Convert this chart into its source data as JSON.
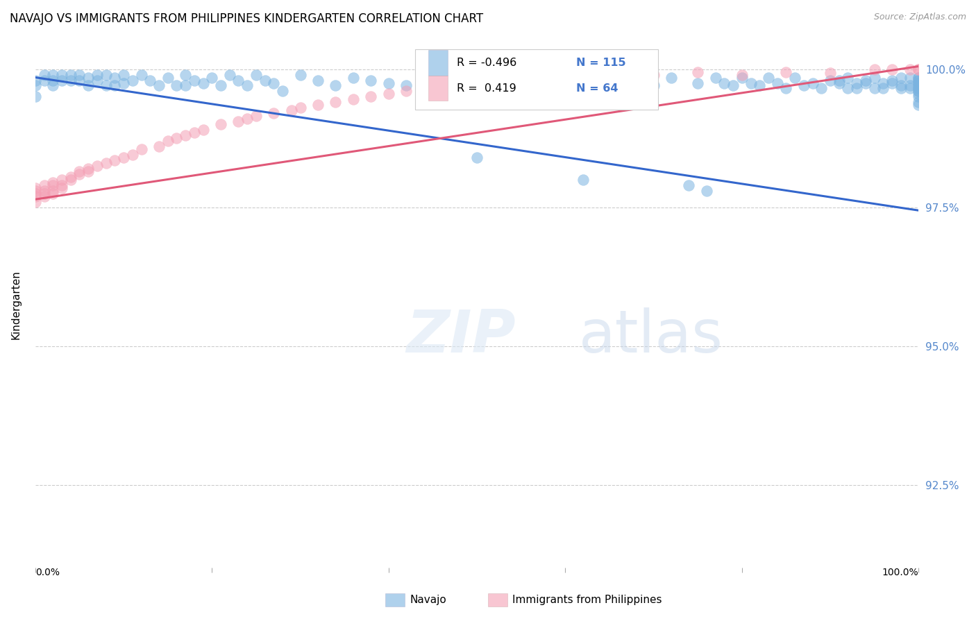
{
  "title": "NAVAJO VS IMMIGRANTS FROM PHILIPPINES KINDERGARTEN CORRELATION CHART",
  "source": "Source: ZipAtlas.com",
  "ylabel": "Kindergarten",
  "ytick_labels": [
    "92.5%",
    "95.0%",
    "97.5%",
    "100.0%"
  ],
  "ytick_values": [
    0.925,
    0.95,
    0.975,
    1.0
  ],
  "xlim": [
    0.0,
    1.0
  ],
  "ylim": [
    0.91,
    1.005
  ],
  "legend_navajo": "Navajo",
  "legend_philippines": "Immigrants from Philippines",
  "navajo_color": "#7ab3e0",
  "philippines_color": "#f4a0b5",
  "navajo_line_color": "#3366cc",
  "philippines_line_color": "#e05878",
  "watermark_zip": "ZIP",
  "watermark_atlas": "atlas",
  "navajo_x": [
    0.0,
    0.0,
    0.0,
    0.01,
    0.01,
    0.02,
    0.02,
    0.02,
    0.03,
    0.03,
    0.04,
    0.04,
    0.05,
    0.05,
    0.06,
    0.06,
    0.07,
    0.07,
    0.08,
    0.08,
    0.09,
    0.09,
    0.1,
    0.1,
    0.11,
    0.12,
    0.13,
    0.14,
    0.15,
    0.16,
    0.17,
    0.17,
    0.18,
    0.19,
    0.2,
    0.21,
    0.22,
    0.23,
    0.24,
    0.25,
    0.26,
    0.27,
    0.28,
    0.3,
    0.32,
    0.34,
    0.36,
    0.38,
    0.4,
    0.42,
    0.44,
    0.46,
    0.48,
    0.5,
    0.52,
    0.55,
    0.58,
    0.6,
    0.62,
    0.65,
    0.68,
    0.7,
    0.72,
    0.74,
    0.75,
    0.76,
    0.77,
    0.78,
    0.79,
    0.8,
    0.81,
    0.82,
    0.83,
    0.84,
    0.85,
    0.86,
    0.87,
    0.88,
    0.89,
    0.9,
    0.91,
    0.91,
    0.92,
    0.92,
    0.93,
    0.93,
    0.94,
    0.94,
    0.95,
    0.95,
    0.96,
    0.96,
    0.97,
    0.97,
    0.98,
    0.98,
    0.98,
    0.99,
    0.99,
    0.99,
    1.0,
    1.0,
    1.0,
    1.0,
    1.0,
    1.0,
    1.0,
    1.0,
    1.0,
    1.0,
    1.0,
    1.0,
    1.0,
    1.0,
    1.0
  ],
  "navajo_y": [
    0.998,
    0.997,
    0.995,
    0.999,
    0.998,
    0.999,
    0.998,
    0.997,
    0.999,
    0.998,
    0.999,
    0.998,
    0.999,
    0.998,
    0.9985,
    0.997,
    0.999,
    0.998,
    0.999,
    0.997,
    0.9985,
    0.997,
    0.999,
    0.9975,
    0.998,
    0.999,
    0.998,
    0.997,
    0.9985,
    0.997,
    0.999,
    0.997,
    0.998,
    0.9975,
    0.9985,
    0.997,
    0.999,
    0.998,
    0.997,
    0.999,
    0.998,
    0.9975,
    0.996,
    0.999,
    0.998,
    0.997,
    0.9985,
    0.998,
    0.9975,
    0.997,
    0.999,
    0.998,
    0.9975,
    0.984,
    0.998,
    0.997,
    0.999,
    0.9975,
    0.98,
    0.9985,
    0.998,
    0.997,
    0.9985,
    0.979,
    0.9975,
    0.978,
    0.9985,
    0.9975,
    0.997,
    0.9985,
    0.9975,
    0.997,
    0.9985,
    0.9975,
    0.9965,
    0.9985,
    0.997,
    0.9975,
    0.9965,
    0.998,
    0.998,
    0.9975,
    0.9965,
    0.9985,
    0.9975,
    0.9965,
    0.998,
    0.9975,
    0.9965,
    0.9985,
    0.9975,
    0.9965,
    0.998,
    0.9975,
    0.9985,
    0.997,
    0.9965,
    0.9985,
    0.997,
    0.9965,
    0.9985,
    0.998,
    0.9975,
    0.997,
    0.9965,
    0.996,
    0.9955,
    0.995,
    0.994,
    0.9935,
    0.9985,
    0.998,
    0.9975,
    0.9965,
    0.996
  ],
  "philippines_x": [
    0.0,
    0.0,
    0.0,
    0.0,
    0.0,
    0.01,
    0.01,
    0.01,
    0.01,
    0.02,
    0.02,
    0.02,
    0.02,
    0.03,
    0.03,
    0.03,
    0.04,
    0.04,
    0.05,
    0.05,
    0.06,
    0.06,
    0.07,
    0.08,
    0.09,
    0.1,
    0.11,
    0.12,
    0.14,
    0.15,
    0.16,
    0.17,
    0.18,
    0.19,
    0.21,
    0.23,
    0.24,
    0.25,
    0.27,
    0.29,
    0.3,
    0.32,
    0.34,
    0.36,
    0.38,
    0.4,
    0.42,
    0.44,
    0.46,
    0.48,
    0.52,
    0.55,
    0.6,
    0.65,
    0.7,
    0.75,
    0.8,
    0.85,
    0.9,
    0.95,
    0.97,
    0.99,
    1.0,
    1.0
  ],
  "philippines_y": [
    0.9785,
    0.978,
    0.9775,
    0.977,
    0.976,
    0.979,
    0.978,
    0.9775,
    0.977,
    0.9795,
    0.979,
    0.978,
    0.9775,
    0.98,
    0.979,
    0.9785,
    0.9805,
    0.98,
    0.9815,
    0.981,
    0.982,
    0.9815,
    0.9825,
    0.983,
    0.9835,
    0.984,
    0.9845,
    0.9855,
    0.986,
    0.987,
    0.9875,
    0.988,
    0.9885,
    0.989,
    0.99,
    0.9905,
    0.991,
    0.9915,
    0.992,
    0.9925,
    0.993,
    0.9935,
    0.994,
    0.9945,
    0.995,
    0.9955,
    0.996,
    0.9965,
    0.997,
    0.9975,
    0.9975,
    0.998,
    0.9975,
    0.9985,
    0.999,
    0.9995,
    0.999,
    0.9995,
    0.9993,
    1.0,
    1.0,
    1.0,
    1.0,
    1.0
  ],
  "navajo_trend_x": [
    0.0,
    1.0
  ],
  "navajo_trend_y": [
    0.9985,
    0.9745
  ],
  "philippines_trend_x": [
    0.0,
    1.0
  ],
  "philippines_trend_y": [
    0.9765,
    1.0005
  ]
}
